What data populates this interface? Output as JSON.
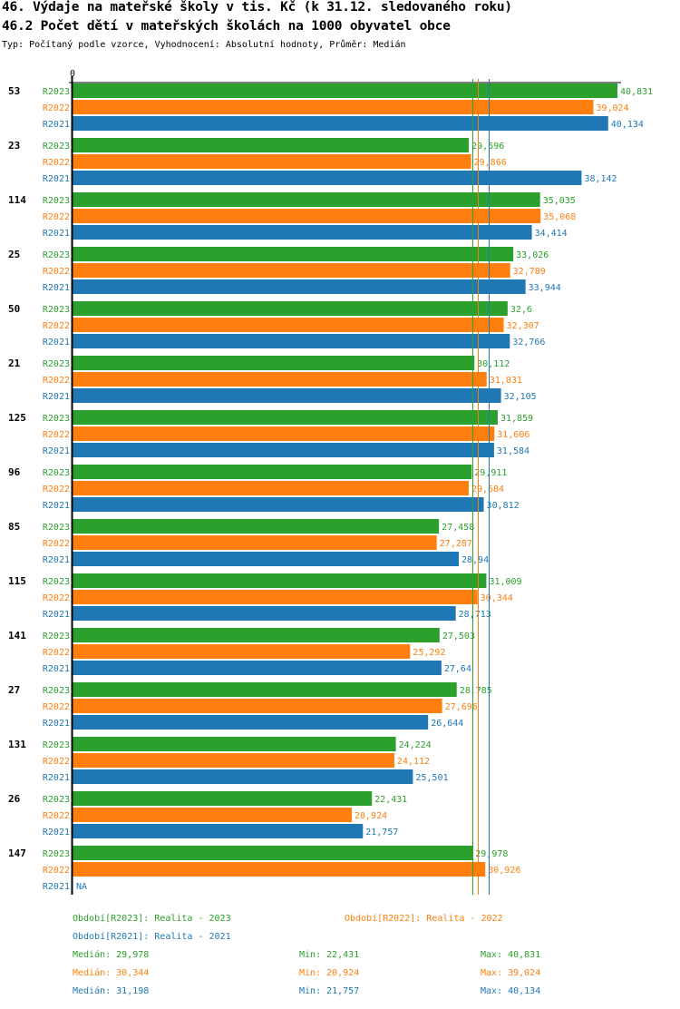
{
  "header": {
    "title": "46. Výdaje na mateřské školy v tis. Kč (k 31.12. sledovaného roku)",
    "subtitle": "46.2 Počet dětí v mateřských školách na 1000 obyvatel obce",
    "meta": "Typ: Počítaný podle vzorce, Vyhodnocení: Absolutní hodnoty, Průměr: Medián"
  },
  "colors": {
    "R2023": "#2ca02c",
    "R2022": "#ff7f0e",
    "R2021": "#1f77b4"
  },
  "chart_data": {
    "type": "bar",
    "orientation": "horizontal",
    "title": "46.2 Počet dětí v mateřských školách na 1000 obyvatel obce",
    "xlabel": "",
    "ylabel": "",
    "x_tick_labels": [
      "0"
    ],
    "xlim": [
      0,
      41
    ],
    "grid": false,
    "categories": [
      "53",
      "23",
      "114",
      "25",
      "50",
      "21",
      "125",
      "96",
      "85",
      "115",
      "141",
      "27",
      "131",
      "26",
      "147"
    ],
    "series": [
      {
        "name": "R2023",
        "values": [
          40.831,
          29.696,
          35.035,
          33.026,
          32.6,
          30.112,
          31.859,
          29.911,
          27.458,
          31.009,
          27.503,
          28.785,
          24.224,
          22.431,
          29.978
        ],
        "labels": [
          "40,831",
          "29,696",
          "35,035",
          "33,026",
          "32,6",
          "30,112",
          "31,859",
          "29,911",
          "27,458",
          "31,009",
          "27,503",
          "28,785",
          "24,224",
          "22,431",
          "29,978"
        ]
      },
      {
        "name": "R2022",
        "values": [
          39.024,
          29.866,
          35.068,
          32.789,
          32.307,
          31.031,
          31.606,
          29.684,
          27.287,
          30.344,
          25.292,
          27.696,
          24.112,
          20.924,
          30.926
        ],
        "labels": [
          "39,024",
          "29,866",
          "35,068",
          "32,789",
          "32,307",
          "31,031",
          "31,606",
          "29,684",
          "27,287",
          "30,344",
          "25,292",
          "27,696",
          "24,112",
          "20,924",
          "30,926"
        ]
      },
      {
        "name": "R2021",
        "values": [
          40.134,
          38.142,
          34.414,
          33.944,
          32.766,
          32.105,
          31.584,
          30.812,
          28.94,
          28.713,
          27.64,
          26.644,
          25.501,
          21.757,
          null
        ],
        "labels": [
          "40,134",
          "38,142",
          "34,414",
          "33,944",
          "32,766",
          "32,105",
          "31,584",
          "30,812",
          "28,94",
          "28,713",
          "27,64",
          "26,644",
          "25,501",
          "21,757",
          "NA"
        ]
      }
    ],
    "reference_lines": [
      {
        "series": "R2023",
        "type": "median",
        "value": 29.978
      },
      {
        "series": "R2022",
        "type": "median",
        "value": 30.344
      },
      {
        "series": "R2021",
        "type": "median",
        "value": 31.198
      }
    ],
    "legend": {
      "placement": "bottom",
      "entries": [
        {
          "series": "R2023",
          "text": "Období[R2023]: Realita - 2023"
        },
        {
          "series": "R2022",
          "text": "Období[R2022]: Realita - 2022"
        },
        {
          "series": "R2021",
          "text": "Období[R2021]: Realita - 2021"
        }
      ]
    },
    "stats": [
      {
        "series": "R2023",
        "median": "Medián: 29,978",
        "min": "Min: 22,431",
        "max": "Max: 40,831"
      },
      {
        "series": "R2022",
        "median": "Medián: 30,344",
        "min": "Min: 20,924",
        "max": "Max: 39,024"
      },
      {
        "series": "R2021",
        "median": "Medián: 31,198",
        "min": "Min: 21,757",
        "max": "Max: 40,134"
      }
    ]
  }
}
